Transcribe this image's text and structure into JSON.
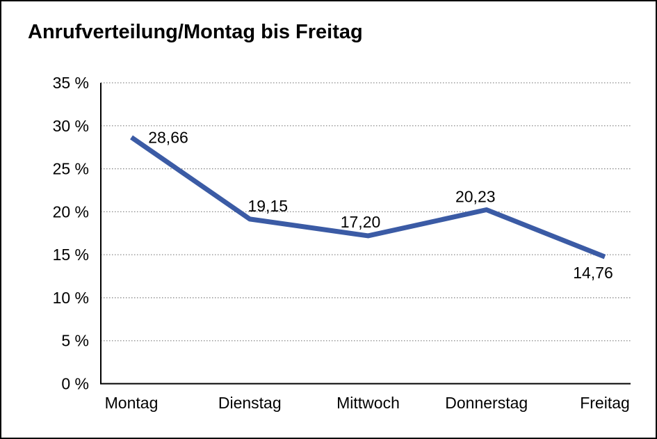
{
  "title": "Anrufverteilung/Montag bis Freitag",
  "chart_data": {
    "type": "line",
    "title": "Anrufverteilung/Montag bis Freitag",
    "categories": [
      "Montag",
      "Dienstag",
      "Mittwoch",
      "Donnerstag",
      "Freitag"
    ],
    "values": [
      28.66,
      19.15,
      17.2,
      20.23,
      14.76
    ],
    "value_labels": [
      "28,66",
      "19,15",
      "17,20",
      "20,23",
      "14,76"
    ],
    "xlabel": "",
    "ylabel": "",
    "ylim": [
      0,
      35
    ],
    "ytick_step": 5,
    "ytick_labels": [
      "0 %",
      "5 %",
      "10 %",
      "15 %",
      "20 %",
      "25 %",
      "30 %",
      "35 %"
    ],
    "grid": "horizontal-dotted",
    "legend": "none",
    "line_color": "#3B5BA5",
    "axis_color": "#000000",
    "gridline_color": "#8a8a8a",
    "text_color": "#000000"
  }
}
